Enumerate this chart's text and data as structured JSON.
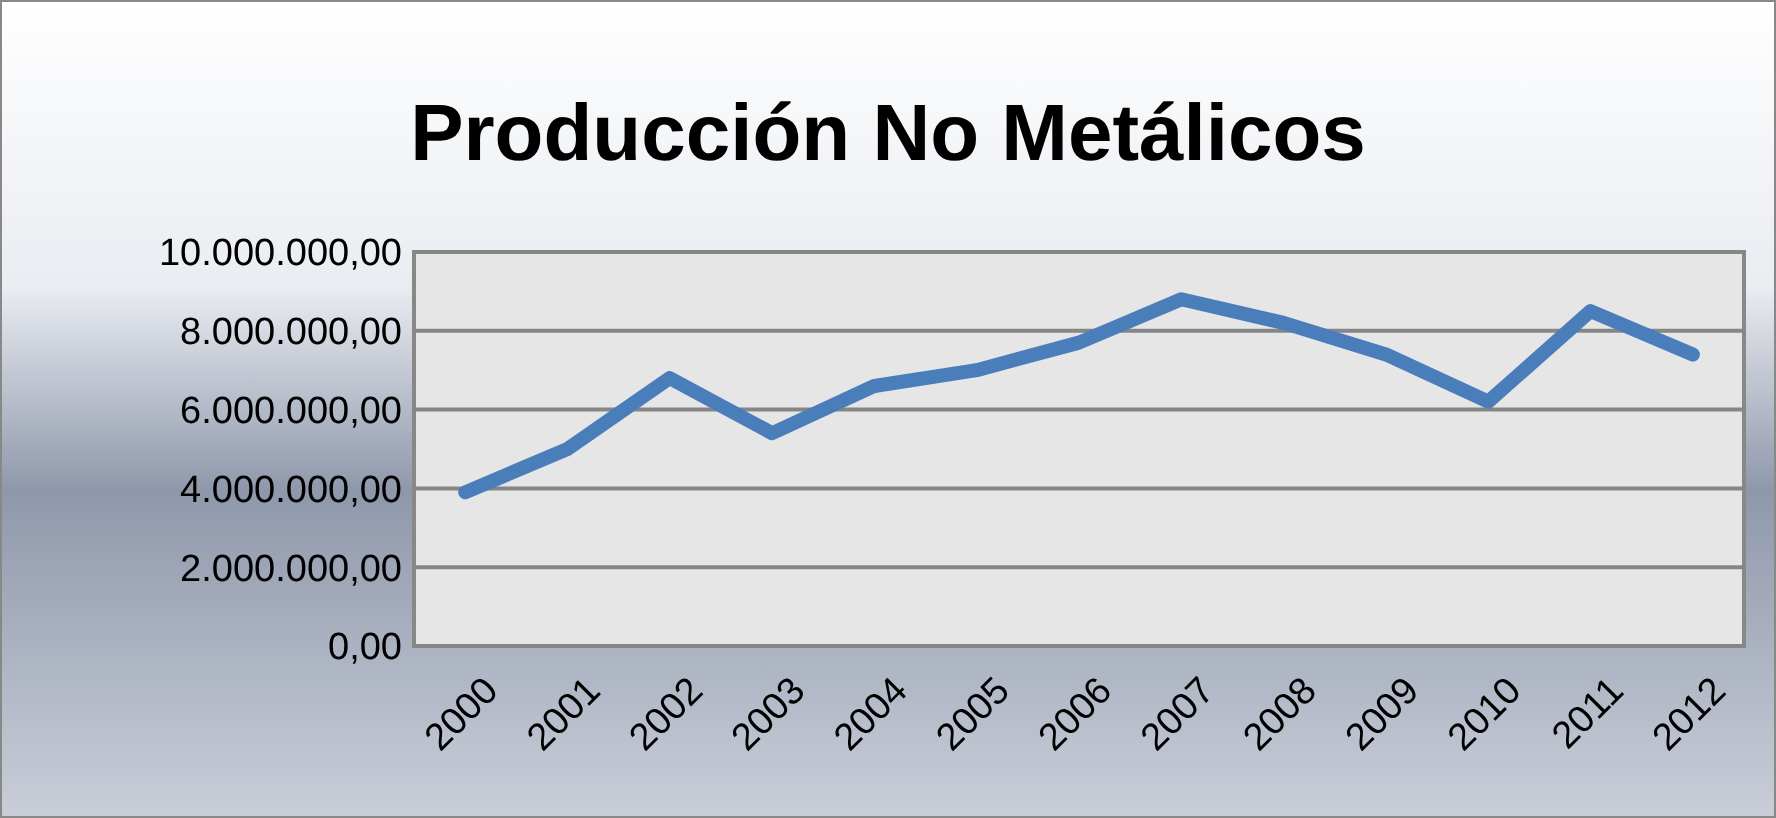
{
  "chart_data": {
    "type": "line",
    "title": "Producción No Metálicos",
    "categories": [
      "2000",
      "2001",
      "2002",
      "2003",
      "2004",
      "2005",
      "2006",
      "2007",
      "2008",
      "2009",
      "2010",
      "2011",
      "2012"
    ],
    "series": [
      {
        "color": "#4a7ebb",
        "values": [
          3900000,
          5000000,
          6800000,
          5400000,
          6600000,
          7000000,
          7700000,
          8800000,
          8200000,
          7400000,
          6200000,
          8500000,
          7400000
        ]
      }
    ],
    "ylim": [
      0,
      10000000
    ],
    "yticks": [
      {
        "value": 0,
        "label": "0,00"
      },
      {
        "value": 2000000,
        "label": "2.000.000,00"
      },
      {
        "value": 4000000,
        "label": "4.000.000,00"
      },
      {
        "value": 6000000,
        "label": "6.000.000,00"
      },
      {
        "value": 8000000,
        "label": "8.000.000,00"
      },
      {
        "value": 10000000,
        "label": "10.000.000,00"
      }
    ],
    "grid": "y",
    "marker": "none",
    "line_style": "solid"
  }
}
